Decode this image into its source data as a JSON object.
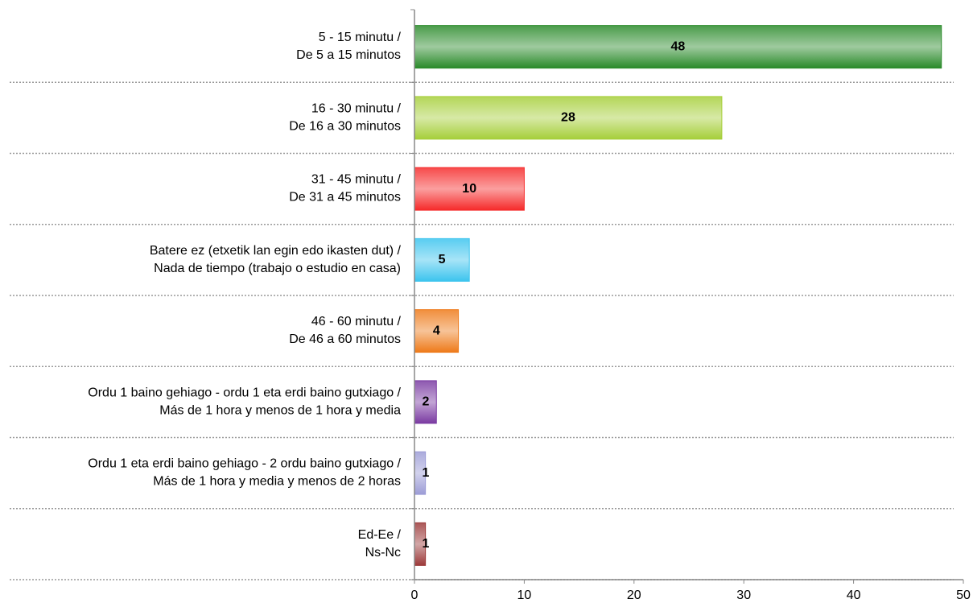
{
  "chart_data": {
    "type": "barh",
    "categories": [
      [
        "5 - 15 minutu /",
        "De 5 a 15 minutos"
      ],
      [
        "16 - 30 minutu /",
        "De 16 a 30 minutos"
      ],
      [
        "31 - 45 minutu /",
        "De 31 a 45 minutos"
      ],
      [
        "Batere ez (etxetik lan egin edo ikasten dut) /",
        "Nada de tiempo (trabajo o estudio en casa)"
      ],
      [
        "46 - 60 minutu /",
        "De 46 a 60 minutos"
      ],
      [
        "Ordu 1 baino gehiago - ordu 1 eta erdi baino gutxiago /",
        "Más de 1 hora y menos de 1 hora y media"
      ],
      [
        "Ordu 1 eta erdi baino gehiago - 2 ordu baino gutxiago /",
        "Más de 1 hora y media y menos de 2 horas"
      ],
      [
        "Ed-Ee /",
        "Ns-Nc"
      ]
    ],
    "values": [
      48,
      28,
      10,
      5,
      4,
      2,
      1,
      1
    ],
    "colors": [
      "#2a8a2a",
      "#a6cf3a",
      "#f52a2a",
      "#3cc4ee",
      "#ee7a1a",
      "#7a3aa2",
      "#9c9cd6",
      "#9c3a3a"
    ],
    "xlim": [
      0,
      50
    ],
    "xticks": [
      0,
      10,
      20,
      30,
      40,
      50
    ],
    "grid": true
  }
}
